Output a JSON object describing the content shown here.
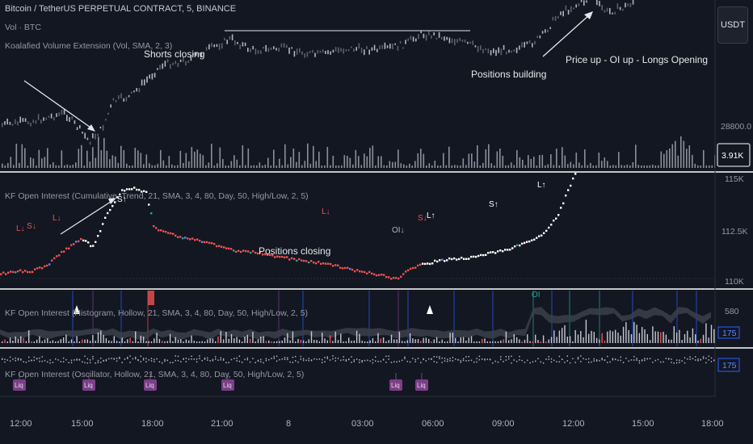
{
  "legend": {
    "symbol": "Bitcoin / TetherUS PERPETUAL CONTRACT, 5, BINANCE",
    "vol": "Vol · BTC",
    "koalafied": "Koalafied Volume Extension (Vol, SMA, 2, 3)"
  },
  "currency_button": "USDT",
  "annotations": {
    "shorts_closing": "Shorts closing",
    "positions_building": "Positions building",
    "price_up": "Price up - OI up - Longs Opening",
    "positions_closing": "Positions closing"
  },
  "price_axis": {
    "label": "28800.0",
    "volume_badge": "3.91K"
  },
  "oi_panel": {
    "title": "KF Open Interest (Cumulative, Trend, 21, SMA, 3, 4, 80, Day, 50, High/Low, 2, 5)",
    "axis": [
      "115K",
      "112.5K",
      "110K"
    ]
  },
  "hist_panel": {
    "title": "KF Open Interest (Histogram, Hollow, 21, SMA, 3, 4, 80, Day, 50, High/Low, 2, 5)",
    "axis": [
      "580"
    ],
    "badge": "175"
  },
  "osc_panel": {
    "title": "KF Open Interest (Oscillator, Hollow, 21, SMA, 3, 4, 80, Day, 50, High/Low, 2, 5)",
    "badge": "175"
  },
  "signals": [
    {
      "text": "L↓",
      "color": "#ef5350"
    },
    {
      "text": "S↓",
      "color": "#ef5350"
    },
    {
      "text": "L↓",
      "color": "#ef5350"
    },
    {
      "text": "S↑",
      "color": "#ffffff"
    },
    {
      "text": "L↓",
      "color": "#ef5350"
    },
    {
      "text": "OI↓",
      "color": "#b2b5be"
    },
    {
      "text": "S↓",
      "color": "#ef5350"
    },
    {
      "text": "L↑",
      "color": "#ffffff"
    },
    {
      "text": "S↑",
      "color": "#ffffff"
    },
    {
      "text": "L↑",
      "color": "#ffffff"
    },
    {
      "text": "OI",
      "color": "#26a69a"
    }
  ],
  "liq_label": "Liq",
  "time_axis": [
    "12:00",
    "15:00",
    "18:00",
    "21:00",
    "8",
    "03:00",
    "06:00",
    "09:00",
    "12:00",
    "15:00",
    "18:00"
  ],
  "colors": {
    "background": "#131722",
    "separator": "#ffffff",
    "down": "#ef5350",
    "up": "#ffffff",
    "teal": "#26a69a",
    "liq": "#7b3f86",
    "badge_blue": "#2962ff"
  }
}
